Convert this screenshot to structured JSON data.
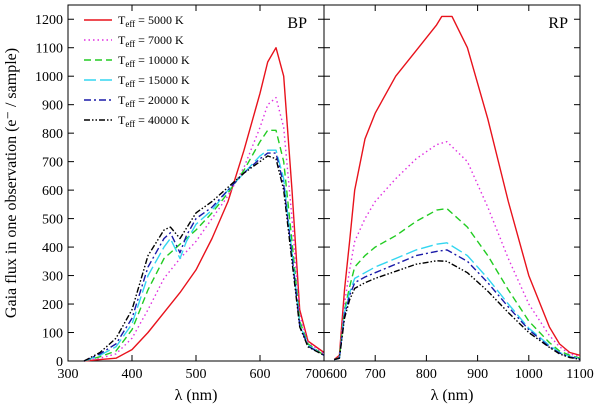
{
  "chart_data": {
    "type": "line",
    "ylabel": "Gaia flux in one observation (e⁻ / sample)",
    "ylim": [
      0,
      1250
    ],
    "yticks": [
      0,
      100,
      200,
      300,
      400,
      500,
      600,
      700,
      800,
      900,
      1000,
      1100,
      1200
    ],
    "legend_position": "top-left",
    "series_styles": [
      {
        "name": "5000",
        "color": "#e8121c",
        "dash": ""
      },
      {
        "name": "7000",
        "color": "#e02ee0",
        "dash": "1.5,3"
      },
      {
        "name": "10000",
        "color": "#22cc22",
        "dash": "7,4"
      },
      {
        "name": "15000",
        "color": "#33d6f0",
        "dash": "12,4"
      },
      {
        "name": "20000",
        "color": "#1a1aa8",
        "dash": "7,3,2,3"
      },
      {
        "name": "40000",
        "color": "#000000",
        "dash": "6,2,1.5,2,1.5,2"
      }
    ],
    "legend": [
      {
        "prefix": "T",
        "sub": "eff",
        "value": "= 5000 K"
      },
      {
        "prefix": "T",
        "sub": "eff",
        "value": "= 7000 K"
      },
      {
        "prefix": "T",
        "sub": "eff",
        "value": "= 10000 K"
      },
      {
        "prefix": "T",
        "sub": "eff",
        "value": "= 15000 K"
      },
      {
        "prefix": "T",
        "sub": "eff",
        "value": "= 20000 K"
      },
      {
        "prefix": "T",
        "sub": "eff",
        "value": "= 40000 K"
      }
    ],
    "panels": [
      {
        "label": "BP",
        "xlabel": "λ (nm)",
        "xlim": [
          300,
          700
        ],
        "xticks": [
          300,
          400,
          500,
          600
        ],
        "xtick_labels": [
          "300",
          "400",
          "500",
          "600"
        ],
        "overlap_label": "700600",
        "series": [
          {
            "name": "5000",
            "x": [
              325,
              350,
              375,
              400,
              425,
              450,
              475,
              500,
              525,
              550,
              575,
              600,
              612,
              625,
              637,
              650,
              662,
              675,
              700
            ],
            "y": [
              0,
              5,
              10,
              40,
              100,
              170,
              240,
              320,
              430,
              560,
              740,
              940,
              1050,
              1100,
              1000,
              600,
              180,
              70,
              30
            ]
          },
          {
            "name": "7000",
            "x": [
              325,
              350,
              375,
              400,
              425,
              450,
              475,
              500,
              525,
              550,
              575,
              600,
              612,
              625,
              637,
              650,
              662,
              675,
              700
            ],
            "y": [
              0,
              10,
              25,
              80,
              180,
              290,
              360,
              420,
              500,
              580,
              680,
              820,
              900,
              925,
              820,
              500,
              160,
              65,
              25
            ]
          },
          {
            "name": "10000",
            "x": [
              325,
              350,
              375,
              400,
              425,
              450,
              475,
              500,
              525,
              550,
              575,
              600,
              612,
              625,
              637,
              650,
              662,
              675,
              700
            ],
            "y": [
              0,
              15,
              35,
              110,
              250,
              360,
              410,
              460,
              520,
              590,
              670,
              770,
              810,
              810,
              700,
              420,
              140,
              60,
              20
            ]
          },
          {
            "name": "15000",
            "x": [
              325,
              350,
              375,
              400,
              425,
              450,
              460,
              475,
              485,
              500,
              525,
              550,
              575,
              600,
              612,
              625,
              637,
              650,
              662,
              675,
              700
            ],
            "y": [
              0,
              20,
              50,
              130,
              300,
              400,
              430,
              360,
              420,
              480,
              530,
              600,
              660,
              720,
              740,
              740,
              640,
              380,
              130,
              55,
              20
            ]
          },
          {
            "name": "20000",
            "x": [
              325,
              350,
              375,
              400,
              425,
              450,
              460,
              475,
              485,
              500,
              525,
              550,
              575,
              600,
              612,
              625,
              637,
              650,
              662,
              675,
              700
            ],
            "y": [
              0,
              25,
              60,
              150,
              330,
              430,
              450,
              380,
              440,
              500,
              540,
              600,
              660,
              710,
              730,
              730,
              620,
              370,
              125,
              52,
              20
            ]
          },
          {
            "name": "40000",
            "x": [
              325,
              350,
              360,
              375,
              400,
              425,
              450,
              460,
              475,
              500,
              525,
              550,
              575,
              600,
              612,
              625,
              637,
              650,
              662,
              675,
              700
            ],
            "y": [
              0,
              30,
              50,
              80,
              180,
              370,
              460,
              470,
              430,
              520,
              560,
              610,
              660,
              700,
              720,
              710,
              600,
              350,
              120,
              50,
              20
            ]
          }
        ]
      },
      {
        "label": "RP",
        "xlabel": "λ (nm)",
        "xlim": [
          600,
          1100
        ],
        "xticks": [
          700,
          800,
          900,
          1000,
          1100
        ],
        "xtick_labels": [
          "700",
          "800",
          "900",
          "1000",
          "1100"
        ],
        "series": [
          {
            "name": "5000",
            "x": [
              620,
              630,
              640,
              650,
              660,
              680,
              700,
              740,
              780,
              820,
              830,
              850,
              880,
              920,
              960,
              1000,
              1040,
              1060,
              1080,
              1100
            ],
            "y": [
              5,
              20,
              250,
              420,
              600,
              780,
              870,
              1000,
              1090,
              1180,
              1210,
              1210,
              1100,
              850,
              560,
              300,
              120,
              60,
              30,
              20
            ]
          },
          {
            "name": "7000",
            "x": [
              620,
              630,
              640,
              650,
              660,
              680,
              700,
              740,
              780,
              820,
              840,
              880,
              920,
              960,
              1000,
              1040,
              1060,
              1080,
              1100
            ],
            "y": [
              5,
              15,
              200,
              320,
              420,
              500,
              560,
              640,
              710,
              760,
              770,
              700,
              540,
              360,
              200,
              90,
              50,
              25,
              15
            ]
          },
          {
            "name": "10000",
            "x": [
              620,
              630,
              640,
              650,
              660,
              680,
              700,
              740,
              780,
              820,
              840,
              880,
              920,
              960,
              1000,
              1040,
              1060,
              1080,
              1100
            ],
            "y": [
              5,
              12,
              180,
              260,
              330,
              370,
              400,
              440,
              490,
              530,
              535,
              470,
              370,
              250,
              140,
              65,
              35,
              20,
              10
            ]
          },
          {
            "name": "15000",
            "x": [
              620,
              630,
              640,
              650,
              660,
              680,
              700,
              740,
              780,
              820,
              840,
              880,
              920,
              960,
              1000,
              1040,
              1060,
              1080,
              1100
            ],
            "y": [
              5,
              10,
              170,
              240,
              290,
              310,
              330,
              360,
              390,
              410,
              415,
              370,
              290,
              200,
              115,
              55,
              30,
              15,
              8
            ]
          },
          {
            "name": "20000",
            "x": [
              620,
              630,
              640,
              650,
              660,
              680,
              700,
              740,
              780,
              820,
              840,
              880,
              920,
              960,
              1000,
              1040,
              1060,
              1080,
              1100
            ],
            "y": [
              5,
              10,
              160,
              230,
              275,
              295,
              310,
              340,
              370,
              385,
              390,
              350,
              275,
              190,
              110,
              50,
              28,
              14,
              7
            ]
          },
          {
            "name": "40000",
            "x": [
              620,
              630,
              640,
              650,
              660,
              680,
              700,
              740,
              780,
              820,
              840,
              880,
              920,
              960,
              1000,
              1040,
              1060,
              1080,
              1100
            ],
            "y": [
              5,
              10,
              150,
              215,
              255,
              275,
              290,
              315,
              340,
              352,
              350,
              310,
              245,
              170,
              100,
              48,
              25,
              12,
              6
            ]
          }
        ]
      }
    ]
  }
}
